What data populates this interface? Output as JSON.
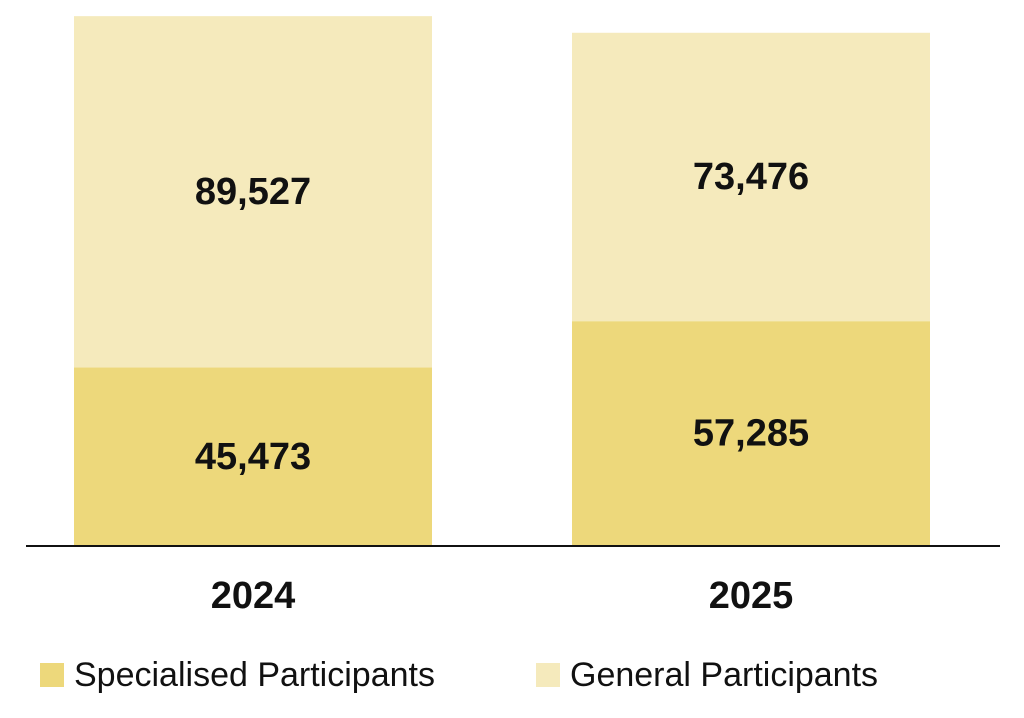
{
  "chart_data": {
    "type": "bar",
    "stacked": true,
    "categories": [
      "2024",
      "2025"
    ],
    "series": [
      {
        "name": "Specialised Participants",
        "values": [
          45473,
          57285
        ],
        "labels": [
          "45,473",
          "57,285"
        ],
        "color": "#EDD87B"
      },
      {
        "name": "General Participants",
        "values": [
          89527,
          73476
        ],
        "labels": [
          "89,527",
          "73,476"
        ],
        "color": "#F5EABC"
      }
    ],
    "ylim": [
      0,
      133000
    ],
    "grid": false,
    "legend_position": "bottom-left",
    "axis_color": "#111111"
  }
}
